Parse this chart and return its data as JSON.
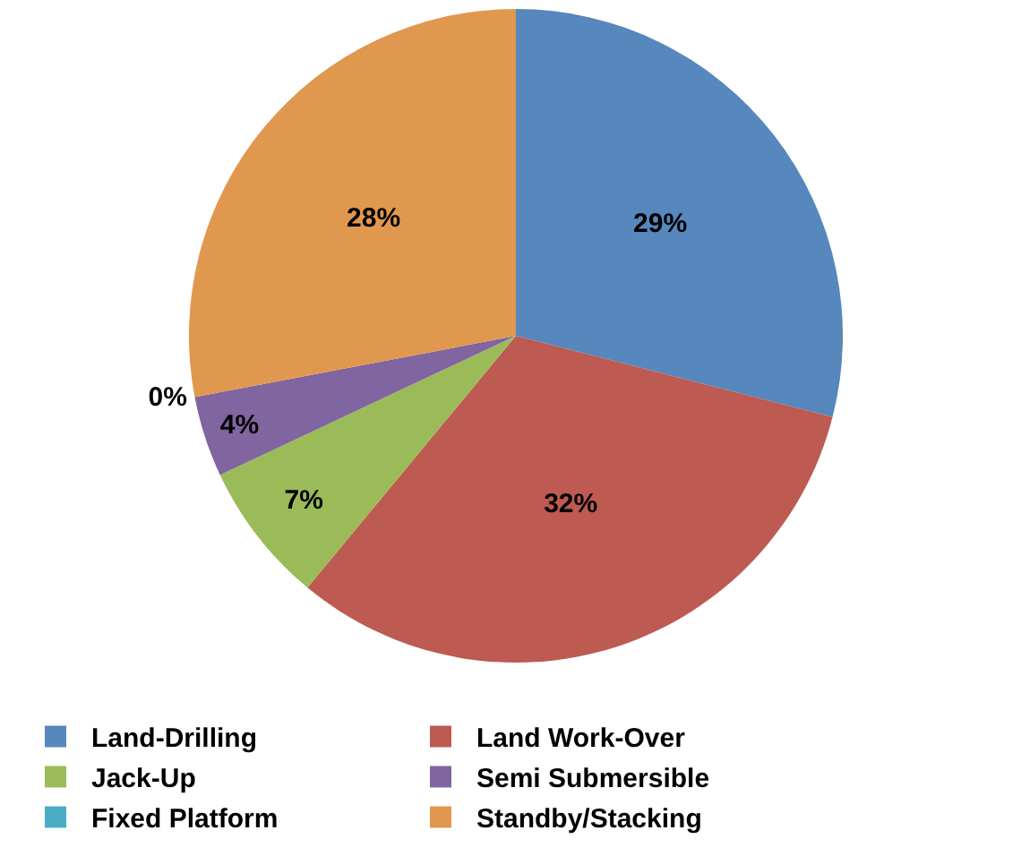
{
  "chart_data": {
    "type": "pie",
    "categories": [
      "Land-Drilling",
      "Land Work-Over",
      "Jack-Up",
      "Semi Submersible",
      "Fixed Platform",
      "Standby/Stacking"
    ],
    "values": [
      29,
      32,
      7,
      4,
      0,
      28
    ],
    "value_labels": [
      "29%",
      "32%",
      "7%",
      "4%",
      "0%",
      "28%"
    ],
    "colors": [
      "#5687bd",
      "#bd5a52",
      "#9bbb59",
      "#8065a0",
      "#4bacc6",
      "#e0984f"
    ],
    "legend": "bottom"
  }
}
